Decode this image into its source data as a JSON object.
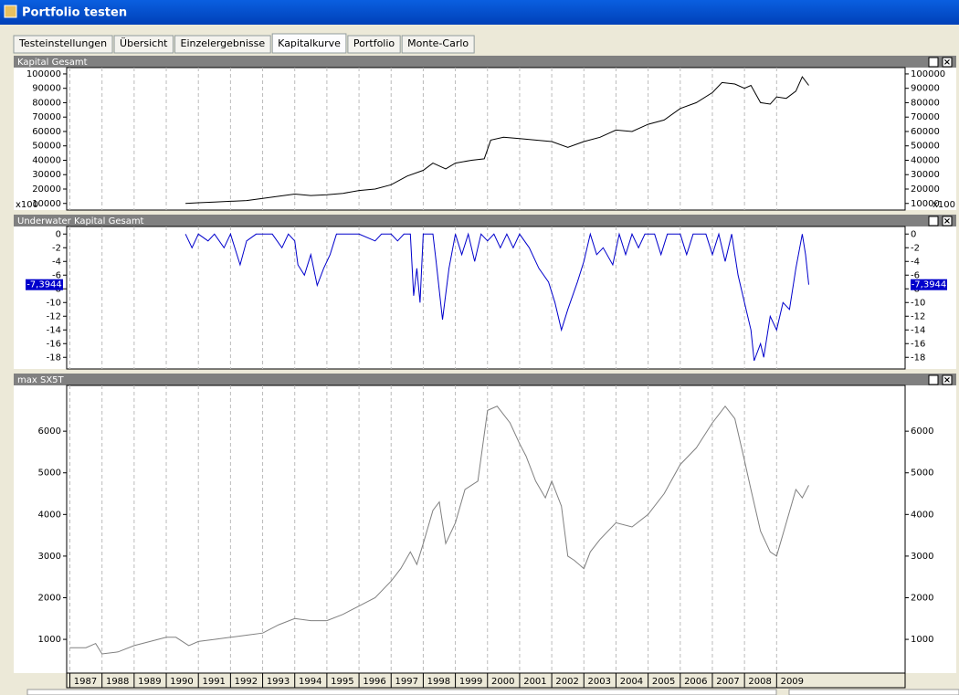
{
  "window": {
    "title": "Portfolio testen"
  },
  "tabs": [
    "Testeinstellungen",
    "Übersicht",
    "Einzelergebnisse",
    "Kapitalkurve",
    "Portfolio",
    "Monte-Carlo"
  ],
  "active_tab": 3,
  "chart_data": [
    {
      "type": "line",
      "title": "Kapital Gesamt",
      "unit_label": "x100",
      "color": "#000000",
      "xlim": [
        1986.9,
        2013
      ],
      "xticks": [
        1987,
        1988,
        1989,
        1990,
        1991,
        1992,
        1993,
        1994,
        1995,
        1996,
        1997,
        1998,
        1999,
        2000,
        2001,
        2002,
        2003,
        2004,
        2005,
        2006,
        2007,
        2008,
        2009
      ],
      "ylim": [
        5400,
        104400
      ],
      "yticks": [
        10000,
        20000,
        30000,
        40000,
        50000,
        60000,
        70000,
        80000,
        90000,
        100000
      ],
      "grid": true,
      "x": [
        1990.6,
        1991,
        1991.5,
        1992,
        1992.5,
        1993,
        1993.5,
        1994,
        1994.5,
        1995,
        1995.5,
        1996,
        1996.5,
        1997,
        1997.5,
        1998,
        1998.3,
        1998.7,
        1999,
        1999.5,
        1999.9,
        2000.1,
        2000.5,
        2001,
        2001.5,
        2002,
        2002.5,
        2003,
        2003.5,
        2004,
        2004.5,
        2005,
        2005.5,
        2006,
        2006.5,
        2007,
        2007.3,
        2007.7,
        2008,
        2008.2,
        2008.5,
        2008.8,
        2009,
        2009.3,
        2009.6,
        2009.8,
        2010
      ],
      "values": [
        10000,
        10500,
        11000,
        11500,
        12000,
        13500,
        15000,
        16500,
        15500,
        16000,
        17000,
        19000,
        20000,
        23000,
        29000,
        33000,
        38000,
        34000,
        38000,
        40000,
        41000,
        54000,
        56000,
        55000,
        54000,
        53000,
        49000,
        53000,
        56000,
        61000,
        60000,
        65000,
        68000,
        76000,
        80000,
        87000,
        94000,
        93000,
        90000,
        92000,
        80000,
        79000,
        84000,
        83000,
        88000,
        98000,
        92000
      ]
    },
    {
      "type": "line",
      "title": "Underwater Kapital Gesamt",
      "last_value_label": "-7,3944",
      "color": "#0000cc",
      "xlim": [
        1986.9,
        2013
      ],
      "xticks": [
        1987,
        1988,
        1989,
        1990,
        1991,
        1992,
        1993,
        1994,
        1995,
        1996,
        1997,
        1998,
        1999,
        2000,
        2001,
        2002,
        2003,
        2004,
        2005,
        2006,
        2007,
        2008,
        2009
      ],
      "ylim": [
        -19.7,
        1.1
      ],
      "yticks": [
        0,
        -2,
        -4,
        -6,
        -8,
        -10,
        -12,
        -14,
        -16,
        -18
      ],
      "grid": true,
      "x": [
        1990.6,
        1990.8,
        1991,
        1991.3,
        1991.5,
        1991.8,
        1992,
        1992.3,
        1992.5,
        1992.8,
        1993.3,
        1993.6,
        1993.8,
        1994,
        1994.1,
        1994.3,
        1994.5,
        1994.7,
        1994.9,
        1995.1,
        1995.3,
        1996,
        1996.5,
        1996.7,
        1997,
        1997.2,
        1997.4,
        1997.6,
        1997.7,
        1997.8,
        1997.9,
        1998,
        1998.3,
        1998.4,
        1998.6,
        1998.8,
        1999,
        1999.2,
        1999.4,
        1999.6,
        1999.8,
        2000,
        2000.2,
        2000.4,
        2000.6,
        2000.8,
        2001,
        2001.3,
        2001.6,
        2001.9,
        2002.1,
        2002.3,
        2002.5,
        2002.8,
        2003,
        2003.2,
        2003.4,
        2003.6,
        2003.9,
        2004.1,
        2004.3,
        2004.5,
        2004.7,
        2004.9,
        2005.2,
        2005.4,
        2005.6,
        2006,
        2006.2,
        2006.4,
        2006.8,
        2007,
        2007.2,
        2007.4,
        2007.6,
        2007.8,
        2008,
        2008.2,
        2008.3,
        2008.5,
        2008.6,
        2008.8,
        2009,
        2009.2,
        2009.4,
        2009.6,
        2009.8,
        2009.9,
        2010
      ],
      "values": [
        0,
        -2,
        0,
        -1,
        0,
        -2,
        0,
        -4.5,
        -1,
        0,
        0,
        -2,
        0,
        -1,
        -4.5,
        -6,
        -3,
        -7.5,
        -5,
        -3,
        0,
        0,
        -1,
        0,
        0,
        -1,
        0,
        0,
        -9,
        -5,
        -10,
        0,
        0,
        -4,
        -12.5,
        -5,
        0,
        -3,
        0,
        -4,
        0,
        -1,
        0,
        -2,
        0,
        -2,
        0,
        -2,
        -5,
        -7,
        -10,
        -14,
        -11,
        -7,
        -4,
        0,
        -3,
        -2,
        -4.5,
        0,
        -3,
        0,
        -2,
        0,
        0,
        -3,
        0,
        0,
        -3,
        0,
        0,
        -3,
        0,
        -4,
        0,
        -6,
        -10,
        -14,
        -18.5,
        -16,
        -18,
        -12,
        -14,
        -10,
        -11,
        -5,
        0,
        -3,
        -7.3944
      ]
    },
    {
      "type": "line",
      "title": "max  SX5T",
      "color": "#808080",
      "x_labels": true,
      "xlim": [
        1986.9,
        2013
      ],
      "xticks": [
        1987,
        1988,
        1989,
        1990,
        1991,
        1992,
        1993,
        1994,
        1995,
        1996,
        1997,
        1998,
        1999,
        2000,
        2001,
        2002,
        2003,
        2004,
        2005,
        2006,
        2007,
        2008,
        2009
      ],
      "ylim": [
        190,
        7100
      ],
      "yticks": [
        1000,
        2000,
        3000,
        4000,
        5000,
        6000
      ],
      "grid": true,
      "x": [
        1987,
        1987.5,
        1987.8,
        1988,
        1988.5,
        1989,
        1989.5,
        1990,
        1990.3,
        1990.7,
        1991,
        1991.5,
        1992,
        1992.5,
        1993,
        1993.5,
        1994,
        1994.5,
        1995,
        1995.5,
        1996,
        1996.5,
        1997,
        1997.3,
        1997.6,
        1997.8,
        1998,
        1998.3,
        1998.5,
        1998.7,
        1999,
        1999.3,
        1999.7,
        2000,
        2000.3,
        2000.7,
        2001,
        2001.2,
        2001.5,
        2001.8,
        2002,
        2002.3,
        2002.5,
        2002.7,
        2003,
        2003.2,
        2003.5,
        2004,
        2004.5,
        2005,
        2005.5,
        2006,
        2006.5,
        2007,
        2007.4,
        2007.7,
        2008,
        2008.2,
        2008.5,
        2008.8,
        2009,
        2009.3,
        2009.6,
        2009.8,
        2010
      ],
      "values": [
        800,
        800,
        900,
        650,
        700,
        850,
        950,
        1050,
        1050,
        850,
        950,
        1000,
        1050,
        1100,
        1150,
        1350,
        1500,
        1450,
        1450,
        1600,
        1800,
        2000,
        2400,
        2700,
        3100,
        2800,
        3300,
        4100,
        4300,
        3300,
        3800,
        4600,
        4800,
        6500,
        6600,
        6200,
        5700,
        5400,
        4800,
        4400,
        4800,
        4200,
        3000,
        2900,
        2700,
        3100,
        3400,
        3800,
        3700,
        4000,
        4500,
        5200,
        5600,
        6200,
        6600,
        6300,
        5300,
        4600,
        3600,
        3100,
        3000,
        3800,
        4600,
        4400,
        4700
      ]
    }
  ]
}
